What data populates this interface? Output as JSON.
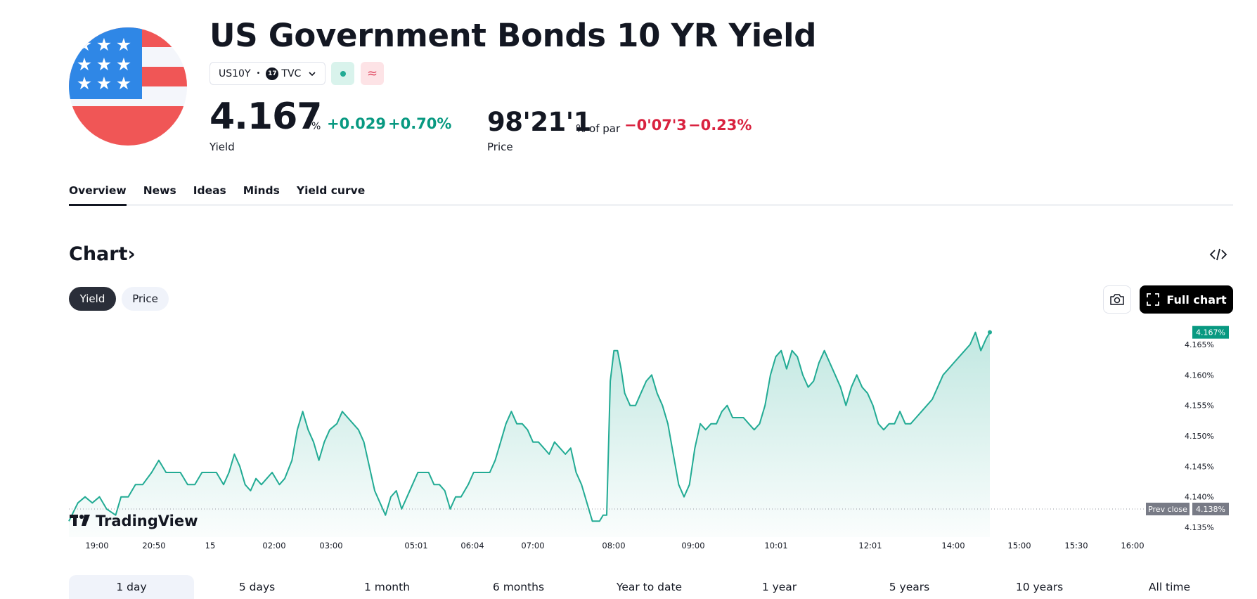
{
  "header": {
    "title": "US Government Bonds 10 YR Yield",
    "symbol": "US10Y",
    "exchange": "TVC",
    "yield_value": "4.167",
    "yield_unit": "%",
    "yield_change": "+0.029",
    "yield_change_pct": "+0.70%",
    "yield_label": "Yield",
    "price_value": "98'21'1",
    "price_unit": "% of par",
    "price_change": "−0'07'3",
    "price_change_pct": "−0.23%",
    "price_label": "Price"
  },
  "colors": {
    "up": "#089981",
    "down": "#d9223f",
    "line": "#22ab94",
    "dark": "#131722"
  },
  "tabs": [
    "Overview",
    "News",
    "Ideas",
    "Minds",
    "Yield curve"
  ],
  "chart_section": {
    "heading": "Chart",
    "heading_arrow": "›",
    "toggle": [
      "Yield",
      "Price"
    ],
    "full_chart_label": "Full chart"
  },
  "chart_data": {
    "type": "area",
    "x_labels": [
      "19:00",
      "20:50",
      "15",
      "02:00",
      "03:00",
      "05:01",
      "06:04",
      "07:00",
      "08:00",
      "09:00",
      "10:01",
      "12:01",
      "14:00",
      "15:00",
      "15:30",
      "16:00"
    ],
    "y_ticks": [
      "4.165%",
      "4.160%",
      "4.155%",
      "4.150%",
      "4.145%",
      "4.140%",
      "4.135%"
    ],
    "y_tick_values": [
      4.165,
      4.16,
      4.155,
      4.15,
      4.145,
      4.14,
      4.135
    ],
    "last_value_label": "4.167%",
    "last_value": 4.167,
    "prev_close_label": "Prev close",
    "prev_close_value_label": "4.138%",
    "prev_close": 4.138,
    "watermark": "TradingView",
    "series": [
      {
        "values": [
          [
            0,
            4.136
          ],
          [
            5,
            4.139
          ],
          [
            9,
            4.14
          ],
          [
            13,
            4.139
          ],
          [
            17,
            4.14
          ],
          [
            21,
            4.138
          ],
          [
            26,
            4.137
          ],
          [
            29,
            4.14
          ],
          [
            33,
            4.14
          ],
          [
            37,
            4.142
          ],
          [
            41,
            4.142
          ],
          [
            46,
            4.144
          ],
          [
            50,
            4.146
          ],
          [
            54,
            4.144
          ],
          [
            58,
            4.144
          ],
          [
            62,
            4.144
          ],
          [
            66,
            4.142
          ],
          [
            70,
            4.142
          ],
          [
            74,
            4.144
          ],
          [
            78,
            4.144
          ],
          [
            82,
            4.144
          ],
          [
            86,
            4.142
          ],
          [
            89,
            4.144
          ],
          [
            92,
            4.147
          ],
          [
            95,
            4.145
          ],
          [
            98,
            4.142
          ],
          [
            101,
            4.141
          ],
          [
            104,
            4.143
          ],
          [
            107,
            4.142
          ],
          [
            110,
            4.143
          ],
          [
            113,
            4.144
          ],
          [
            117,
            4.142
          ],
          [
            120,
            4.143
          ],
          [
            124,
            4.146
          ],
          [
            127,
            4.151
          ],
          [
            130,
            4.154
          ],
          [
            133,
            4.151
          ],
          [
            136,
            4.149
          ],
          [
            139,
            4.146
          ],
          [
            142,
            4.149
          ],
          [
            145,
            4.151
          ],
          [
            149,
            4.152
          ],
          [
            152,
            4.154
          ],
          [
            155,
            4.153
          ],
          [
            158,
            4.152
          ],
          [
            161,
            4.151
          ],
          [
            164,
            4.149
          ],
          [
            167,
            4.145
          ],
          [
            170,
            4.141
          ],
          [
            173,
            4.139
          ],
          [
            176,
            4.137
          ],
          [
            179,
            4.14
          ],
          [
            182,
            4.141
          ],
          [
            185,
            4.138
          ],
          [
            188,
            4.14
          ],
          [
            191,
            4.142
          ],
          [
            194,
            4.144
          ],
          [
            197,
            4.144
          ],
          [
            200,
            4.144
          ],
          [
            203,
            4.142
          ],
          [
            206,
            4.142
          ],
          [
            209,
            4.141
          ],
          [
            212,
            4.138
          ],
          [
            215,
            4.14
          ],
          [
            218,
            4.14
          ],
          [
            222,
            4.142
          ],
          [
            225,
            4.144
          ],
          [
            228,
            4.144
          ],
          [
            231,
            4.144
          ],
          [
            234,
            4.144
          ],
          [
            237,
            4.146
          ],
          [
            240,
            4.149
          ],
          [
            243,
            4.152
          ],
          [
            246,
            4.154
          ],
          [
            249,
            4.152
          ],
          [
            252,
            4.152
          ],
          [
            255,
            4.151
          ],
          [
            258,
            4.149
          ],
          [
            261,
            4.149
          ],
          [
            264,
            4.148
          ],
          [
            267,
            4.147
          ],
          [
            270,
            4.149
          ],
          [
            273,
            4.148
          ],
          [
            276,
            4.147
          ],
          [
            279,
            4.148
          ],
          [
            282,
            4.144
          ],
          [
            285,
            4.142
          ],
          [
            288,
            4.139
          ],
          [
            291,
            4.136
          ],
          [
            293,
            4.136
          ],
          [
            295,
            4.136
          ],
          [
            297,
            4.137
          ],
          [
            299,
            4.137
          ],
          [
            301,
            4.159
          ],
          [
            303,
            4.164
          ],
          [
            305,
            4.164
          ],
          [
            307,
            4.161
          ],
          [
            309,
            4.157
          ],
          [
            312,
            4.155
          ],
          [
            315,
            4.155
          ],
          [
            318,
            4.157
          ],
          [
            321,
            4.159
          ],
          [
            324,
            4.16
          ],
          [
            327,
            4.157
          ],
          [
            330,
            4.155
          ],
          [
            333,
            4.152
          ],
          [
            336,
            4.147
          ],
          [
            339,
            4.142
          ],
          [
            342,
            4.14
          ],
          [
            345,
            4.142
          ],
          [
            348,
            4.148
          ],
          [
            351,
            4.152
          ],
          [
            354,
            4.151
          ],
          [
            357,
            4.152
          ],
          [
            360,
            4.152
          ],
          [
            363,
            4.154
          ],
          [
            366,
            4.155
          ],
          [
            369,
            4.153
          ],
          [
            372,
            4.153
          ],
          [
            375,
            4.153
          ],
          [
            378,
            4.152
          ],
          [
            381,
            4.151
          ],
          [
            384,
            4.152
          ],
          [
            387,
            4.155
          ],
          [
            390,
            4.16
          ],
          [
            393,
            4.163
          ],
          [
            396,
            4.164
          ],
          [
            399,
            4.161
          ],
          [
            402,
            4.164
          ],
          [
            405,
            4.163
          ],
          [
            408,
            4.16
          ],
          [
            411,
            4.158
          ],
          [
            414,
            4.159
          ],
          [
            417,
            4.162
          ],
          [
            420,
            4.164
          ],
          [
            423,
            4.162
          ],
          [
            426,
            4.16
          ],
          [
            429,
            4.158
          ],
          [
            432,
            4.155
          ],
          [
            435,
            4.158
          ],
          [
            438,
            4.16
          ],
          [
            441,
            4.158
          ],
          [
            444,
            4.157
          ],
          [
            447,
            4.155
          ],
          [
            450,
            4.152
          ],
          [
            453,
            4.151
          ],
          [
            456,
            4.152
          ],
          [
            459,
            4.152
          ],
          [
            462,
            4.154
          ],
          [
            465,
            4.152
          ],
          [
            468,
            4.152
          ],
          [
            471,
            4.153
          ],
          [
            474,
            4.154
          ],
          [
            477,
            4.155
          ],
          [
            480,
            4.156
          ],
          [
            483,
            4.158
          ],
          [
            486,
            4.16
          ],
          [
            489,
            4.161
          ],
          [
            492,
            4.162
          ],
          [
            495,
            4.163
          ],
          [
            498,
            4.164
          ],
          [
            501,
            4.165
          ],
          [
            504,
            4.167
          ],
          [
            507,
            4.164
          ],
          [
            510,
            4.166
          ],
          [
            512,
            4.167
          ]
        ]
      }
    ]
  },
  "ranges": [
    "1 day",
    "5 days",
    "1 month",
    "6 months",
    "Year to date",
    "1 year",
    "5 years",
    "10 years",
    "All time"
  ]
}
